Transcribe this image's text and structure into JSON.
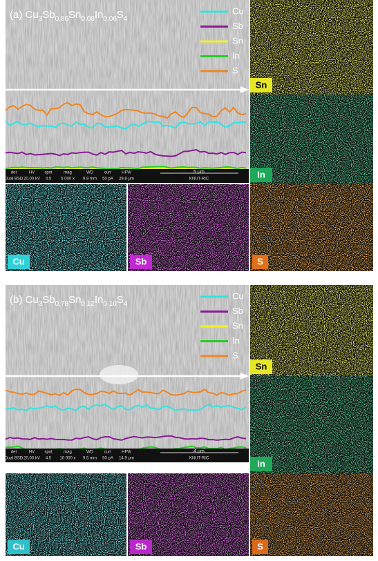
{
  "panels": [
    {
      "title": [
        {
          "text": "(a) Cu"
        },
        {
          "text": "3",
          "sub": true
        },
        {
          "text": "Sb"
        },
        {
          "text": "0.86",
          "sub": true
        },
        {
          "text": "Sn"
        },
        {
          "text": "0.08",
          "sub": true
        },
        {
          "text": "In"
        },
        {
          "text": "0.06",
          "sub": true
        },
        {
          "text": "S"
        },
        {
          "text": "4",
          "sub": true
        }
      ],
      "legend": [
        {
          "name": "Cu",
          "color": "#33e3e3"
        },
        {
          "name": "Sb",
          "color": "#8a1a96"
        },
        {
          "name": "Sn",
          "color": "#f2f222"
        },
        {
          "name": "In",
          "color": "#22d022"
        },
        {
          "name": "S",
          "color": "#f08522"
        }
      ],
      "info": {
        "headers": [
          "det",
          "HV",
          "spot",
          "mag",
          "WD",
          "curr",
          "HFW"
        ],
        "values": [
          "Dual BSD",
          "20.00 kV",
          "4.5",
          "5 000 x",
          "9.9 mm",
          "50 pA",
          "29.8 μm"
        ],
        "scale": "5 μm",
        "lab": "KNUT-RIC"
      },
      "maps": [
        {
          "label": "Sn",
          "color": "#e6e628",
          "text_color": "#000000"
        },
        {
          "label": "In",
          "color": "#1fa85a",
          "text_color": "#ffffff"
        },
        {
          "label": "Cu",
          "color": "#2fd0d8",
          "text_color": "#ffffff"
        },
        {
          "label": "Sb",
          "color": "#c02ad0",
          "text_color": "#ffffff"
        },
        {
          "label": "S",
          "color": "#e0701a",
          "text_color": "#ffffff"
        }
      ]
    },
    {
      "title": [
        {
          "text": "(b) Cu"
        },
        {
          "text": "3",
          "sub": true
        },
        {
          "text": "Sb"
        },
        {
          "text": "0.78",
          "sub": true
        },
        {
          "text": "Sn"
        },
        {
          "text": "0.12",
          "sub": true
        },
        {
          "text": "In"
        },
        {
          "text": "0.10",
          "sub": true
        },
        {
          "text": "S"
        },
        {
          "text": "4",
          "sub": true
        }
      ],
      "legend": [
        {
          "name": "Cu",
          "color": "#33e3e3"
        },
        {
          "name": "Sb",
          "color": "#8a1a96"
        },
        {
          "name": "Sn",
          "color": "#f2f222"
        },
        {
          "name": "In",
          "color": "#22d022"
        },
        {
          "name": "S",
          "color": "#f08522"
        }
      ],
      "info": {
        "headers": [
          "det",
          "HV",
          "spot",
          "mag",
          "WD",
          "curr",
          "HFW"
        ],
        "values": [
          "Dual BSD",
          "20.00 kV",
          "4.5",
          "10 000 x",
          "9.5 mm",
          "50 pA",
          "14.9 μm"
        ],
        "scale": "4 μm",
        "lab": "KNUT-RIC"
      },
      "maps": [
        {
          "label": "Sn",
          "color": "#e6e628",
          "text_color": "#000000"
        },
        {
          "label": "In",
          "color": "#1fa85a",
          "text_color": "#ffffff"
        },
        {
          "label": "Cu",
          "color": "#2fc0c8",
          "text_color": "#ffffff"
        },
        {
          "label": "Sb",
          "color": "#b82ac8",
          "text_color": "#ffffff"
        },
        {
          "label": "S",
          "color": "#d86a1a",
          "text_color": "#ffffff"
        }
      ]
    }
  ]
}
